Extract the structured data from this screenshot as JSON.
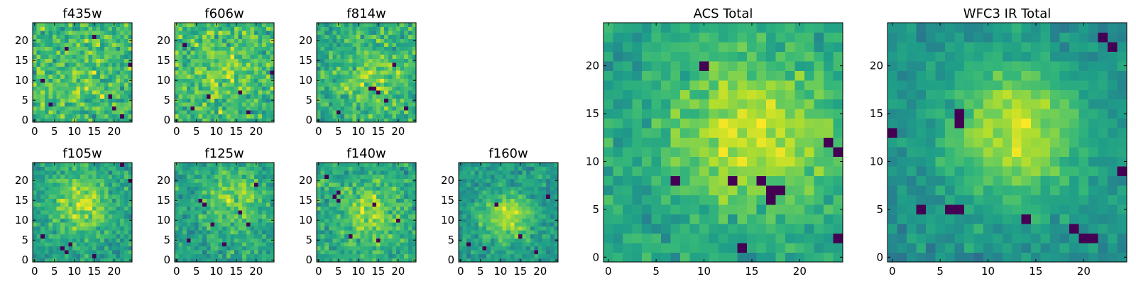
{
  "figure": {
    "colormap": "viridis",
    "grid": false,
    "legend": "none"
  },
  "chart_data": [
    {
      "type": "heatmap",
      "title": "f435w",
      "xlabel": "",
      "ylabel": "",
      "grid_size": 25,
      "xlim": [
        -0.5,
        24.5
      ],
      "ylim": [
        -0.5,
        24.5
      ],
      "xticks": [
        0,
        5,
        10,
        15,
        20
      ],
      "yticks": [
        0,
        5,
        10,
        15,
        20
      ],
      "seed": 11,
      "center": [
        12,
        12
      ],
      "peak": 0.08,
      "sigma": 6,
      "noise": 0.85,
      "dark_pixels": [
        [
          4,
          4
        ],
        [
          19,
          6
        ],
        [
          20,
          3
        ],
        [
          24,
          14
        ],
        [
          8,
          18
        ],
        [
          15,
          21
        ],
        [
          22,
          1
        ],
        [
          2,
          10
        ]
      ]
    },
    {
      "type": "heatmap",
      "title": "f606w",
      "xlabel": "",
      "ylabel": "",
      "grid_size": 25,
      "xlim": [
        -0.5,
        24.5
      ],
      "ylim": [
        -0.5,
        24.5
      ],
      "xticks": [
        0,
        5,
        10,
        15,
        20
      ],
      "yticks": [
        0,
        5,
        10,
        15,
        20
      ],
      "seed": 23,
      "center": [
        12,
        13
      ],
      "peak": 0.12,
      "sigma": 6,
      "noise": 0.8,
      "dark_pixels": [
        [
          18,
          2
        ],
        [
          8,
          6
        ],
        [
          24,
          12
        ],
        [
          4,
          3
        ],
        [
          16,
          7
        ],
        [
          2,
          19
        ]
      ]
    },
    {
      "type": "heatmap",
      "title": "f814w",
      "xlabel": "",
      "ylabel": "",
      "grid_size": 25,
      "xlim": [
        -0.5,
        24.5
      ],
      "ylim": [
        -0.5,
        24.5
      ],
      "xticks": [
        0,
        5,
        10,
        15,
        20
      ],
      "yticks": [
        0,
        5,
        10,
        15,
        20
      ],
      "seed": 37,
      "center": [
        14,
        11
      ],
      "peak": 0.18,
      "sigma": 6,
      "noise": 0.75,
      "dark_pixels": [
        [
          13,
          8
        ],
        [
          14,
          8
        ],
        [
          17,
          5
        ],
        [
          15,
          7
        ],
        [
          22,
          3
        ],
        [
          5,
          2
        ],
        [
          19,
          14
        ]
      ]
    },
    {
      "type": "heatmap",
      "title": "f105w",
      "xlabel": "",
      "ylabel": "",
      "grid_size": 25,
      "xlim": [
        -0.5,
        24.5
      ],
      "ylim": [
        -0.5,
        24.5
      ],
      "xticks": [
        0,
        5,
        10,
        15,
        20
      ],
      "yticks": [
        0,
        5,
        10,
        15,
        20
      ],
      "seed": 41,
      "center": [
        12,
        14
      ],
      "peak": 0.3,
      "sigma": 5,
      "noise": 0.6,
      "dark_pixels": [
        [
          7,
          3
        ],
        [
          8,
          2
        ],
        [
          9,
          4
        ],
        [
          22,
          24
        ],
        [
          24,
          20
        ],
        [
          15,
          1
        ],
        [
          2,
          6
        ]
      ]
    },
    {
      "type": "heatmap",
      "title": "f125w",
      "xlabel": "",
      "ylabel": "",
      "grid_size": 25,
      "xlim": [
        -0.5,
        24.5
      ],
      "ylim": [
        -0.5,
        24.5
      ],
      "xticks": [
        0,
        5,
        10,
        15,
        20
      ],
      "yticks": [
        0,
        5,
        10,
        15,
        20
      ],
      "seed": 53,
      "center": [
        14,
        15
      ],
      "peak": 0.22,
      "sigma": 5,
      "noise": 0.65,
      "dark_pixels": [
        [
          6,
          15
        ],
        [
          7,
          14
        ],
        [
          18,
          9
        ],
        [
          12,
          4
        ],
        [
          3,
          5
        ],
        [
          20,
          19
        ],
        [
          16,
          12
        ],
        [
          9,
          9
        ]
      ]
    },
    {
      "type": "heatmap",
      "title": "f140w",
      "xlabel": "",
      "ylabel": "",
      "grid_size": 25,
      "xlim": [
        -0.5,
        24.5
      ],
      "ylim": [
        -0.5,
        24.5
      ],
      "xticks": [
        0,
        5,
        10,
        15,
        20
      ],
      "yticks": [
        0,
        5,
        10,
        15,
        20
      ],
      "seed": 61,
      "center": [
        13,
        12
      ],
      "peak": 0.25,
      "sigma": 5,
      "noise": 0.65,
      "dark_pixels": [
        [
          4,
          16
        ],
        [
          5,
          17
        ],
        [
          5,
          15
        ],
        [
          14,
          14
        ],
        [
          15,
          5
        ],
        [
          8,
          6
        ],
        [
          20,
          10
        ],
        [
          2,
          21
        ]
      ]
    },
    {
      "type": "heatmap",
      "title": "f160w",
      "xlabel": "",
      "ylabel": "",
      "grid_size": 25,
      "xlim": [
        -0.5,
        24.5
      ],
      "ylim": [
        -0.5,
        24.5
      ],
      "xticks": [
        0,
        5,
        10,
        15,
        20
      ],
      "yticks": [
        0,
        5,
        10,
        15,
        20
      ],
      "seed": 71,
      "center": [
        12,
        11
      ],
      "peak": 0.35,
      "sigma": 4.5,
      "noise": 0.55,
      "dark_pixels": [
        [
          2,
          4
        ],
        [
          6,
          3
        ],
        [
          19,
          2
        ],
        [
          22,
          16
        ],
        [
          9,
          14
        ],
        [
          15,
          6
        ]
      ]
    },
    {
      "type": "heatmap",
      "title": "ACS Total",
      "xlabel": "",
      "ylabel": "",
      "grid_size": 25,
      "xlim": [
        -0.5,
        24.5
      ],
      "ylim": [
        -0.5,
        24.5
      ],
      "xticks": [
        0,
        5,
        10,
        15,
        20
      ],
      "yticks": [
        0,
        5,
        10,
        15,
        20
      ],
      "seed": 83,
      "center": [
        15,
        13
      ],
      "peak": 0.3,
      "sigma": 6,
      "noise": 0.45,
      "dark_pixels": [
        [
          13,
          8
        ],
        [
          16,
          8
        ],
        [
          17,
          7
        ],
        [
          18,
          7
        ],
        [
          17,
          6
        ],
        [
          23,
          12
        ],
        [
          24,
          11
        ],
        [
          14,
          1
        ],
        [
          24,
          2
        ],
        [
          7,
          8
        ],
        [
          10,
          20
        ]
      ]
    },
    {
      "type": "heatmap",
      "title": "WFC3 IR Total",
      "xlabel": "",
      "ylabel": "",
      "grid_size": 25,
      "xlim": [
        -0.5,
        24.5
      ],
      "ylim": [
        -0.5,
        24.5
      ],
      "xticks": [
        0,
        5,
        10,
        15,
        20
      ],
      "yticks": [
        0,
        5,
        10,
        15,
        20
      ],
      "seed": 97,
      "center": [
        13,
        13
      ],
      "peak": 0.4,
      "sigma": 5,
      "noise": 0.4,
      "dark_pixels": [
        [
          7,
          15
        ],
        [
          7,
          14
        ],
        [
          6,
          5
        ],
        [
          7,
          5
        ],
        [
          3,
          5
        ],
        [
          19,
          3
        ],
        [
          20,
          2
        ],
        [
          21,
          2
        ],
        [
          24,
          9
        ],
        [
          23,
          22
        ],
        [
          22,
          23
        ],
        [
          14,
          4
        ],
        [
          0,
          13
        ]
      ]
    }
  ]
}
